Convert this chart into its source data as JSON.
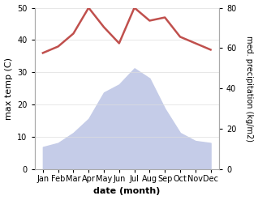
{
  "months": [
    "Jan",
    "Feb",
    "Mar",
    "Apr",
    "May",
    "Jun",
    "Jul",
    "Aug",
    "Sep",
    "Oct",
    "Nov",
    "Dec"
  ],
  "temperature": [
    36,
    38,
    42,
    50,
    44,
    39,
    50,
    46,
    47,
    41,
    39,
    37
  ],
  "precipitation": [
    11,
    13,
    18,
    25,
    38,
    42,
    50,
    45,
    30,
    18,
    14,
    13
  ],
  "temp_color": "#c0504d",
  "precip_fill_color": "#c5cce8",
  "left_ylim": [
    0,
    50
  ],
  "right_ylim": [
    0,
    80
  ],
  "left_yticks": [
    0,
    10,
    20,
    30,
    40,
    50
  ],
  "right_yticks": [
    0,
    20,
    40,
    60,
    80
  ],
  "xlabel": "date (month)",
  "ylabel_left": "max temp (C)",
  "ylabel_right": "med. precipitation (kg/m2)",
  "background_color": "#ffffff",
  "spine_color": "#aaaaaa",
  "grid_color": "#dddddd"
}
